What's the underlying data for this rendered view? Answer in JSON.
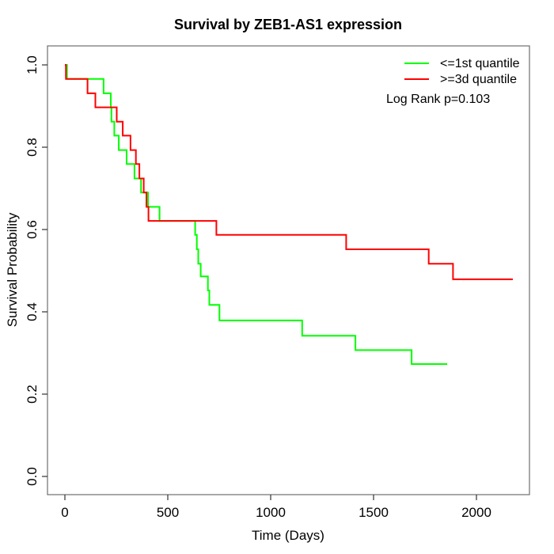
{
  "chart_data": {
    "type": "line",
    "chart_kind": "kaplan-meier-step",
    "title": "Survival by ZEB1-AS1 expression",
    "xlabel": "Time (Days)",
    "ylabel": "Survival Probability",
    "x_ticks": [
      0,
      500,
      1000,
      1500,
      2000
    ],
    "y_ticks": [
      0.0,
      0.2,
      0.4,
      0.6,
      0.8,
      1.0
    ],
    "xlim": [
      0,
      2258
    ],
    "ylim": [
      0.0,
      1.0
    ],
    "grid": false,
    "legend_position": "topright",
    "annotation": "Log Rank p=0.103",
    "frame_color": "#7a7a7a",
    "tick_color": "#404040",
    "text_color": "#000000",
    "background_color": "#ffffff",
    "series": [
      {
        "key": "le-1st-quantile",
        "name": "<=1st quantile",
        "color": "#00ff00",
        "start": [
          0,
          1.0
        ],
        "steps": [
          [
            10,
            0.966
          ],
          [
            188,
            0.931
          ],
          [
            223,
            0.897
          ],
          [
            226,
            0.862
          ],
          [
            240,
            0.828
          ],
          [
            262,
            0.793
          ],
          [
            300,
            0.759
          ],
          [
            338,
            0.724
          ],
          [
            370,
            0.69
          ],
          [
            404,
            0.655
          ],
          [
            460,
            0.621
          ],
          [
            633,
            0.587
          ],
          [
            641,
            0.552
          ],
          [
            648,
            0.517
          ],
          [
            660,
            0.486
          ],
          [
            695,
            0.452
          ],
          [
            702,
            0.417
          ],
          [
            751,
            0.379
          ],
          [
            1153,
            0.342
          ],
          [
            1412,
            0.307
          ],
          [
            1685,
            0.273
          ]
        ],
        "end_time": 1858
      },
      {
        "key": "ge-3d-quantile",
        "name": ">=3d quantile",
        "color": "#ff0000",
        "start": [
          0,
          1.0
        ],
        "steps": [
          [
            5,
            0.966
          ],
          [
            110,
            0.931
          ],
          [
            148,
            0.897
          ],
          [
            252,
            0.862
          ],
          [
            281,
            0.828
          ],
          [
            319,
            0.793
          ],
          [
            345,
            0.759
          ],
          [
            362,
            0.724
          ],
          [
            383,
            0.69
          ],
          [
            396,
            0.655
          ],
          [
            406,
            0.621
          ],
          [
            736,
            0.587
          ],
          [
            1367,
            0.552
          ],
          [
            1768,
            0.517
          ],
          [
            1886,
            0.479
          ]
        ],
        "end_time": 2177
      }
    ]
  }
}
